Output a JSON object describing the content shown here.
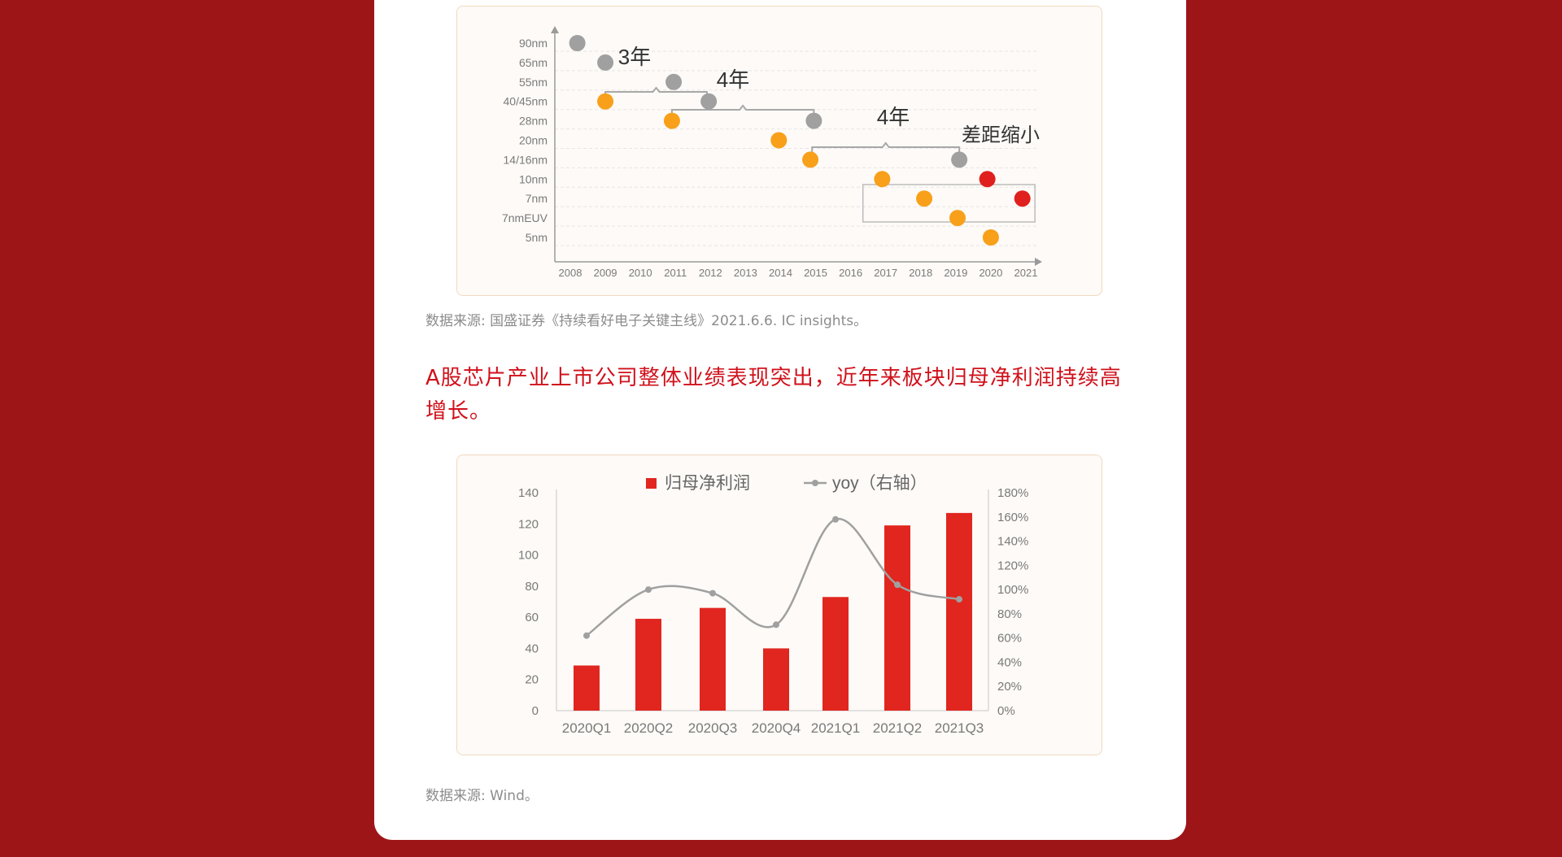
{
  "colors": {
    "page_bg": "#9e1518",
    "card_bg": "#ffffff",
    "headline": "#d0111b",
    "gray_node": "#a0a0a0",
    "orange_node": "#f8a01a",
    "red_node": "#e0201e",
    "bar": "#e0261f",
    "yoy_line": "#a0a0a0"
  },
  "source1": "数据来源: 国盛证券《持续看好电子关键主线》2021.6.6. IC insights。",
  "headline": "A股芯片产业上市公司整体业绩表现突出，近年来板块归母净利润持续高增长。",
  "source2": "数据来源: Wind。",
  "chart_data": [
    {
      "type": "scatter",
      "x_ticks": [
        "2008",
        "2009",
        "2010",
        "2011",
        "2012",
        "2013",
        "2014",
        "2015",
        "2016",
        "2017",
        "2018",
        "2019",
        "2020",
        "2021"
      ],
      "y_categories": [
        "90nm",
        "65nm",
        "55nm",
        "40/45nm",
        "28nm",
        "20nm",
        "14/16nm",
        "10nm",
        "7nm",
        "7nmEUV",
        "5nm"
      ],
      "series": [
        {
          "color": "#a0a0a0",
          "points": [
            {
              "x": 2008.2,
              "y": "90nm"
            },
            {
              "x": 2009.0,
              "y": "65nm"
            },
            {
              "x": 2010.95,
              "y": "55nm"
            },
            {
              "x": 2011.95,
              "y": "40/45nm"
            },
            {
              "x": 2014.95,
              "y": "28nm"
            },
            {
              "x": 2019.1,
              "y": "14/16nm"
            }
          ]
        },
        {
          "color": "#f8a01a",
          "points": [
            {
              "x": 2009.0,
              "y": "40/45nm"
            },
            {
              "x": 2010.9,
              "y": "28nm"
            },
            {
              "x": 2013.95,
              "y": "20nm"
            },
            {
              "x": 2014.85,
              "y": "14/16nm"
            },
            {
              "x": 2016.9,
              "y": "10nm"
            },
            {
              "x": 2018.1,
              "y": "7nm"
            },
            {
              "x": 2019.05,
              "y": "7nmEUV"
            },
            {
              "x": 2020.0,
              "y": "5nm"
            }
          ]
        },
        {
          "color": "#e0201e",
          "points": [
            {
              "x": 2019.9,
              "y": "10nm"
            },
            {
              "x": 2020.9,
              "y": "7nm"
            }
          ]
        }
      ],
      "annotations": [
        {
          "text": "3年"
        },
        {
          "text": "4年"
        },
        {
          "text": "4年"
        },
        {
          "text": "差距缩小"
        }
      ]
    },
    {
      "type": "bar",
      "categories": [
        "2020Q1",
        "2020Q2",
        "2020Q3",
        "2020Q4",
        "2021Q1",
        "2021Q2",
        "2021Q3"
      ],
      "series": [
        {
          "name": "归母净利润",
          "type": "bar",
          "axis": "left",
          "values": [
            29,
            59,
            66,
            40,
            73,
            119,
            127
          ]
        },
        {
          "name": "yoy（右轴）",
          "type": "line",
          "axis": "right",
          "values": [
            62,
            100,
            97,
            71,
            158,
            104,
            92
          ]
        }
      ],
      "left_axis": {
        "ticks": [
          "0",
          "20",
          "40",
          "60",
          "80",
          "100",
          "120",
          "140"
        ],
        "ylim": [
          0,
          140
        ]
      },
      "right_axis": {
        "ticks": [
          "0%",
          "20%",
          "40%",
          "60%",
          "80%",
          "100%",
          "120%",
          "140%",
          "160%",
          "180%"
        ],
        "ylim": [
          0,
          180
        ]
      },
      "legend": "top-center"
    }
  ]
}
